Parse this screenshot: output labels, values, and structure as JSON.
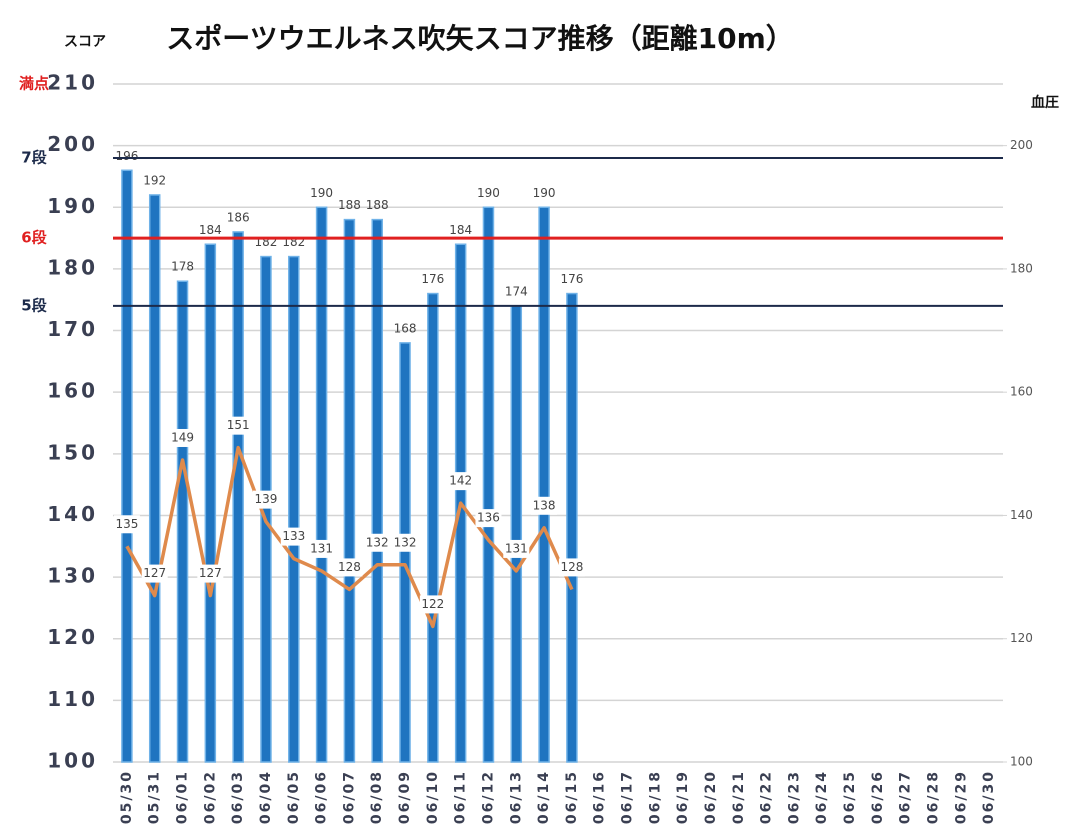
{
  "chart_data": {
    "type": "bar",
    "title": "スポーツウエルネス吹矢スコア推移（距離10m）",
    "ylabel": "スコア",
    "y2label": "血圧",
    "categories": [
      "05/30",
      "05/31",
      "06/01",
      "06/02",
      "06/03",
      "06/04",
      "06/05",
      "06/06",
      "06/07",
      "06/08",
      "06/09",
      "06/10",
      "06/11",
      "06/12",
      "06/13",
      "06/14",
      "06/15",
      "06/16",
      "06/17",
      "06/18",
      "06/19",
      "06/20",
      "06/21",
      "06/22",
      "06/23",
      "06/24",
      "06/25",
      "06/26",
      "06/27",
      "06/28",
      "06/29",
      "06/30"
    ],
    "series": [
      {
        "type": "bar",
        "color": "#1f74c0",
        "values": [
          196,
          192,
          178,
          184,
          186,
          182,
          182,
          190,
          188,
          188,
          168,
          176,
          184,
          190,
          174,
          190,
          176,
          null,
          null,
          null,
          null,
          null,
          null,
          null,
          null,
          null,
          null,
          null,
          null,
          null,
          null,
          null
        ]
      },
      {
        "type": "line",
        "axis": "y2",
        "color": "#df8a4c",
        "values": [
          135,
          127,
          149,
          127,
          151,
          139,
          133,
          131,
          128,
          132,
          132,
          122,
          142,
          136,
          131,
          138,
          128,
          null,
          null,
          null,
          null,
          null,
          null,
          null,
          null,
          null,
          null,
          null,
          null,
          null,
          null,
          null
        ]
      }
    ],
    "ylim": [
      100,
      210
    ],
    "yticks": [
      100,
      110,
      120,
      130,
      140,
      150,
      160,
      170,
      180,
      190,
      200,
      210
    ],
    "y2lim": [
      100,
      210
    ],
    "y2ticks": [
      100,
      120,
      140,
      160,
      180,
      200
    ],
    "grid": true,
    "reference_lines": [
      {
        "label": "満点",
        "value": 210,
        "color": "#e02020",
        "line": false
      },
      {
        "label": "7段",
        "value": 198,
        "color": "#1c2a4a",
        "line": true
      },
      {
        "label": "6段",
        "value": 185,
        "color": "#e02020",
        "line": true
      },
      {
        "label": "5段",
        "value": 174,
        "color": "#1c2a4a",
        "line": true
      }
    ]
  }
}
